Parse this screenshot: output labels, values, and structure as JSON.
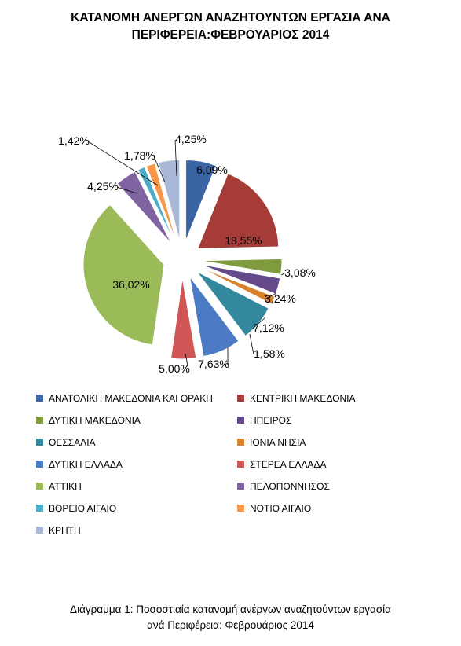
{
  "title": {
    "line1": "ΚΑΤΑΝΟΜΗ ΑΝΕΡΓΩΝ ΑΝΑΖΗΤΟΥΝΤΩΝ ΕΡΓΑΣΙΑ ΑΝΑ",
    "line2": "ΠΕΡΙΦΕΡΕΙΑ:ΦΕΒΡΟΥΑΡΙΟΣ 2014"
  },
  "caption": {
    "line1": "Διάγραμμα 1: Ποσοστιαία κατανομή ανέργων αναζητούντων εργασία",
    "line2": "ανά Περιφέρεια: Φεβρουάριος 2014"
  },
  "chart_data": {
    "type": "pie",
    "title": "ΚΑΤΑΝΟΜΗ ΑΝΕΡΓΩΝ ΑΝΑΖΗΤΟΥΝΤΩΝ ΕΡΓΑΣΙΑ ΑΝΑ ΠΕΡΙΦΕΡΕΙΑ:ΦΕΒΡΟΥΑΡΙΟΣ 2014",
    "legend_position": "bottom",
    "slices": [
      {
        "name": "ΑΝΑΤΟΛΙΚΗ ΜΑΚΕΔΟΝΙΑ ΚΑΙ ΘΡΑΚΗ",
        "value": 6.09,
        "label": "6,09%",
        "color": "#3B64A4"
      },
      {
        "name": "ΚΕΝΤΡΙΚΗ ΜΑΚΕΔΟΝΙΑ",
        "value": 18.55,
        "label": "18,55%",
        "color": "#A53C38"
      },
      {
        "name": "ΔΥΤΙΚΗ ΜΑΚΕΔΟΝΙΑ",
        "value": 3.08,
        "label": "3,08%",
        "color": "#7F9B3D"
      },
      {
        "name": "ΗΠΕΙΡΟΣ",
        "value": 3.24,
        "label": "3,24%",
        "color": "#654A8B"
      },
      {
        "name": "ΙΟΝΙΑ ΝΗΣΙΑ",
        "value": 1.58,
        "label": "1,58%",
        "color": "#D9822B"
      },
      {
        "name": "ΘΕΣΣΑΛΙΑ",
        "value": 7.12,
        "label": "7,12%",
        "color": "#34889E"
      },
      {
        "name": "ΔΥΤΙΚΗ ΕΛΛΑΔΑ",
        "value": 7.63,
        "label": "7,63%",
        "color": "#4A7BC4"
      },
      {
        "name": "ΣΤΕΡΕΑ ΕΛΛΑΔΑ",
        "value": 5.0,
        "label": "5,00%",
        "color": "#CF5654"
      },
      {
        "name": "ΑΤΤΙΚΗ",
        "value": 36.02,
        "label": "36,02%",
        "color": "#9BBB59"
      },
      {
        "name": "ΠΕΛΟΠΟΝΝΗΣΟΣ",
        "value": 4.25,
        "label": "4,25%",
        "color": "#8064A2"
      },
      {
        "name": "ΒΟΡΕΙΟ ΑΙΓΑΙΟ",
        "value": 1.42,
        "label": "1,42%",
        "color": "#4BACC6"
      },
      {
        "name": "ΝΟΤΙΟ ΑΙΓΑΙΟ",
        "value": 1.78,
        "label": "1,78%",
        "color": "#F79646"
      },
      {
        "name": "ΚΡΗΤΗ",
        "value": 4.25,
        "label": "4,25%",
        "color": "#AAB9D8"
      }
    ],
    "legend_order": [
      "ΑΝΑΤΟΛΙΚΗ ΜΑΚΕΔΟΝΙΑ ΚΑΙ ΘΡΑΚΗ",
      "ΚΕΝΤΡΙΚΗ ΜΑΚΕΔΟΝΙΑ",
      "ΔΥΤΙΚΗ ΜΑΚΕΔΟΝΙΑ",
      "ΗΠΕΙΡΟΣ",
      "ΘΕΣΣΑΛΙΑ",
      "ΙΟΝΙΑ ΝΗΣΙΑ",
      "ΔΥΤΙΚΗ ΕΛΛΑΔΑ",
      "ΣΤΕΡΕΑ ΕΛΛΑΔΑ",
      "ΑΤΤΙΚΗ",
      "ΠΕΛΟΠΟΝΝΗΣΟΣ",
      "ΒΟΡΕΙΟ ΑΙΓΑΙΟ",
      "ΝΟΤΙΟ ΑΙΓΑΙΟ",
      "ΚΡΗΤΗ"
    ]
  }
}
